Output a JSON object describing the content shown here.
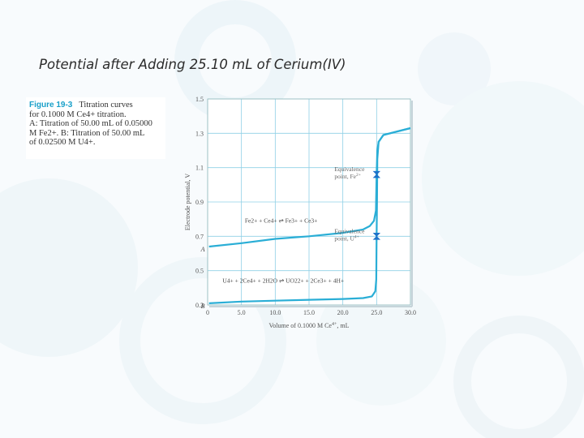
{
  "slide": {
    "title": "Potential after Adding 25.10 mL of Cerium(IV)"
  },
  "caption": {
    "figure_label": "Figure 19-3",
    "text": "Titration curves\nfor 0.1000 M Ce4+ titration.\nA: Titration of 50.00 mL of 0.05000\nM Fe2+. B: Titration of 50.00 mL\nof 0.02500 M U4+."
  },
  "colors": {
    "curve": "#2aaed6",
    "grid": "#8fd0e6",
    "marker": "#1d72c9",
    "caption_label": "#1aa0c9"
  },
  "chart_data": {
    "type": "line",
    "xlabel": "Volume of 0.1000 M Ce4+, mL",
    "ylabel": "Electrode potential, V",
    "xlim": [
      0,
      30
    ],
    "ylim": [
      0.3,
      1.5
    ],
    "x_ticks": [
      "0",
      "5.0",
      "10.0",
      "15.0",
      "20.0",
      "25.0",
      "30.0"
    ],
    "y_ticks": [
      "0.3",
      "0.5",
      "0.7",
      "0.9",
      "1.1",
      "1.3",
      "1.5"
    ],
    "grid": true,
    "series": [
      {
        "name": "A",
        "points": [
          [
            0.2,
            0.64
          ],
          [
            5,
            0.66
          ],
          [
            10,
            0.685
          ],
          [
            15,
            0.7
          ],
          [
            20,
            0.72
          ],
          [
            23,
            0.74
          ],
          [
            24,
            0.76
          ],
          [
            24.6,
            0.79
          ],
          [
            24.9,
            0.85
          ],
          [
            25.0,
            1.06
          ],
          [
            25.1,
            1.2
          ],
          [
            25.3,
            1.25
          ],
          [
            26,
            1.29
          ],
          [
            28,
            1.31
          ],
          [
            30,
            1.33
          ]
        ]
      },
      {
        "name": "B",
        "points": [
          [
            0.2,
            0.31
          ],
          [
            5,
            0.32
          ],
          [
            10,
            0.325
          ],
          [
            15,
            0.33
          ],
          [
            20,
            0.335
          ],
          [
            23,
            0.34
          ],
          [
            24.3,
            0.35
          ],
          [
            24.8,
            0.38
          ],
          [
            24.95,
            0.45
          ],
          [
            25.0,
            0.7
          ],
          [
            25.05,
            0.9
          ],
          [
            25.1,
            1.15
          ],
          [
            25.3,
            1.25
          ],
          [
            26,
            1.29
          ],
          [
            28,
            1.31
          ],
          [
            30,
            1.33
          ]
        ]
      }
    ],
    "equivalence_points": [
      {
        "x": 25.0,
        "y": 1.06,
        "label_line1": "Equivalence",
        "label_line2": "point, Fe2+"
      },
      {
        "x": 25.0,
        "y": 0.7,
        "label_line1": "Equivalence",
        "label_line2": "point, U4+"
      }
    ],
    "annotations": {
      "fe_reaction": "Fe2+ + Ce4+ ⇌ Fe3+ + Ce3+",
      "u_reaction": "U4+ + 2Ce4+ + 2H2O ⇌ UO22+ + 2Ce3+ + 4H+"
    }
  }
}
